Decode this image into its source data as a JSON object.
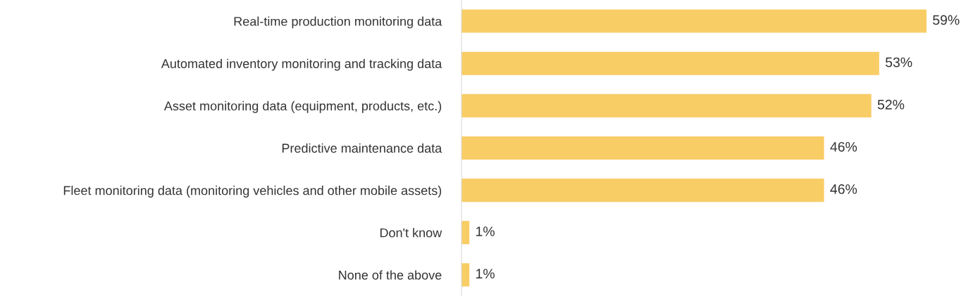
{
  "chart_data": {
    "type": "bar",
    "orientation": "horizontal",
    "categories": [
      "Real-time production monitoring data",
      "Automated inventory monitoring and tracking data",
      "Asset monitoring data (equipment, products, etc.)",
      "Predictive maintenance data",
      "Fleet monitoring data (monitoring vehicles and other mobile assets)",
      "Don't know",
      "None of the above"
    ],
    "values": [
      59,
      53,
      52,
      46,
      46,
      1,
      1
    ],
    "value_labels": [
      "59%",
      "53%",
      "52%",
      "46%",
      "46%",
      "1%",
      "1%"
    ],
    "color": "#f9cd66",
    "grid": false
  }
}
